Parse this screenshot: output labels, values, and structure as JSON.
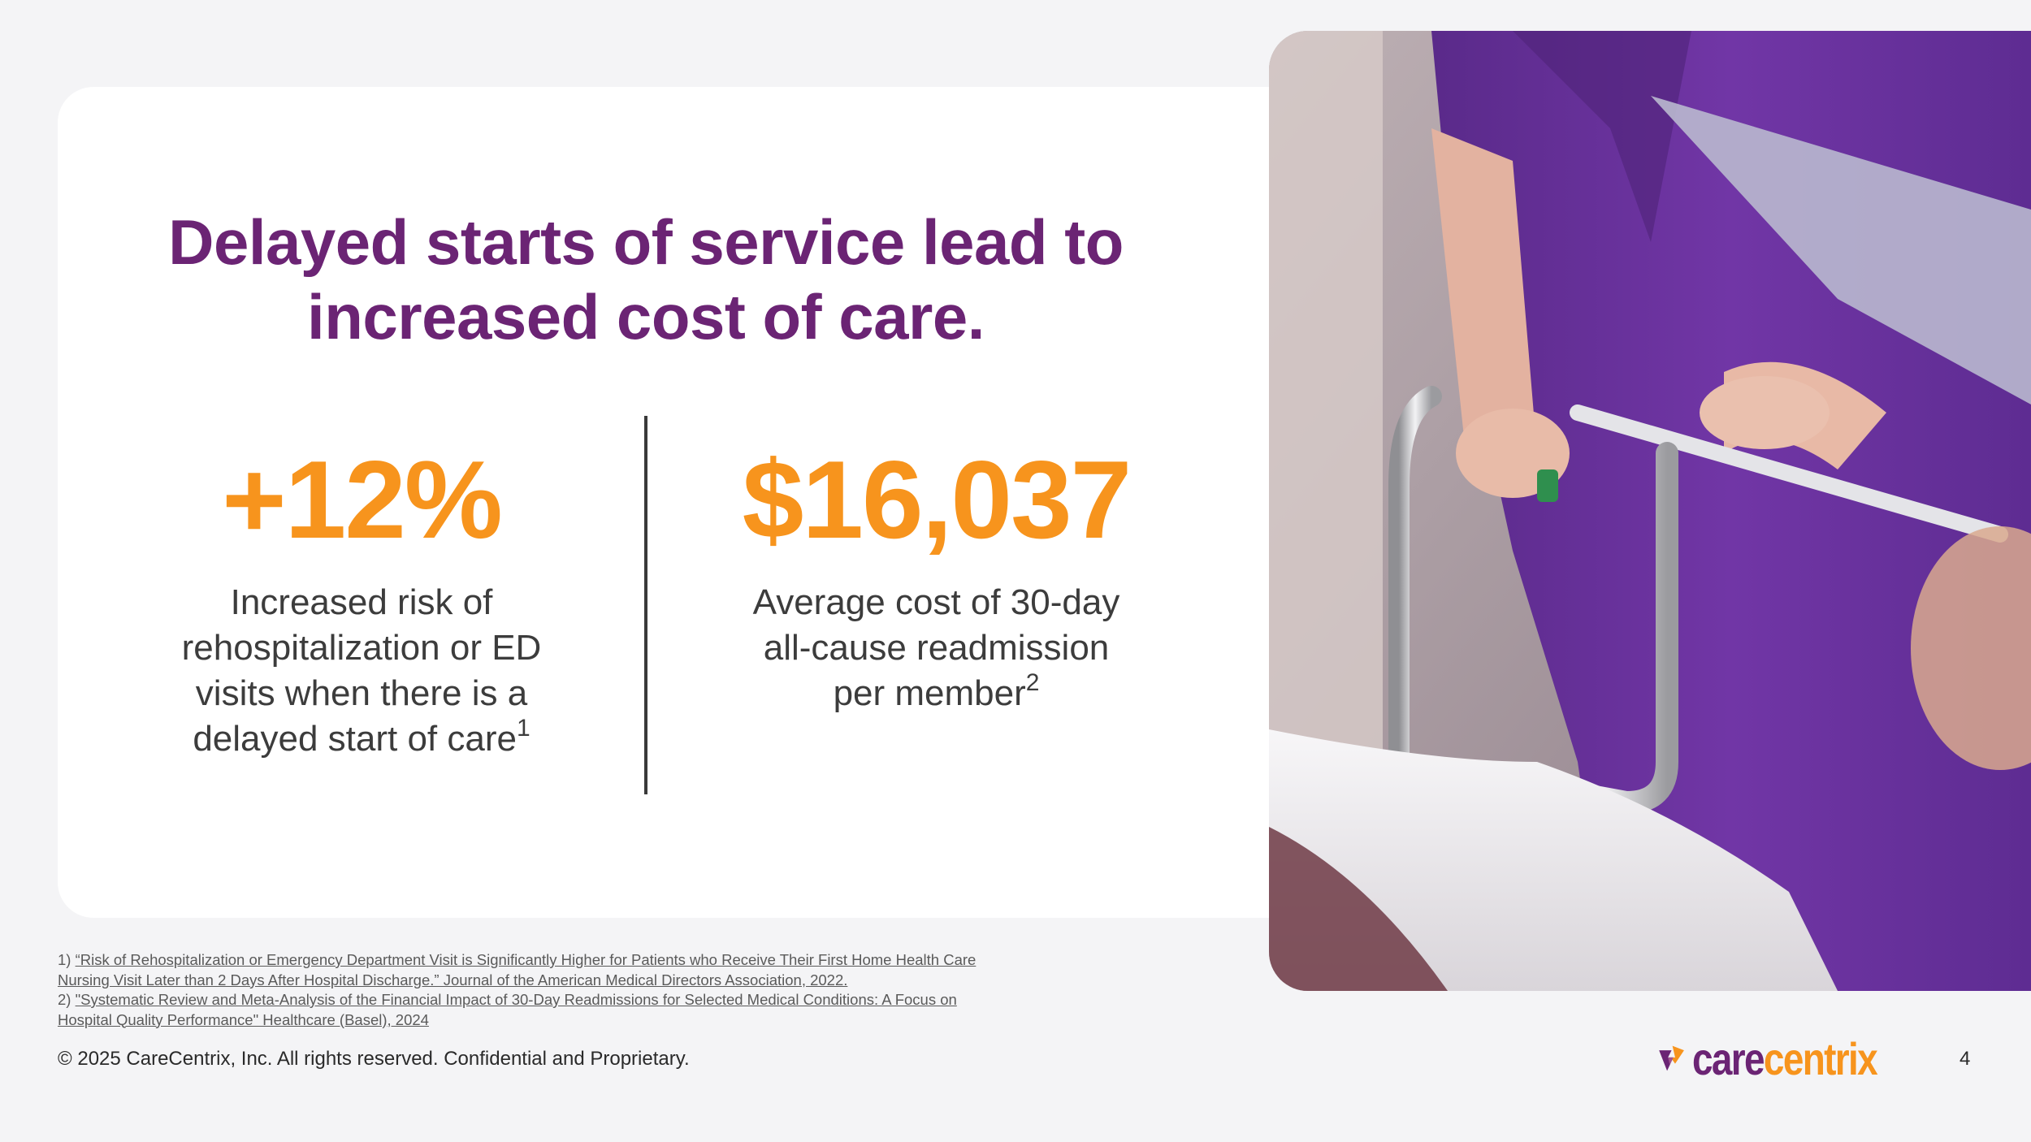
{
  "slide": {
    "title_line1": "Delayed starts of service lead to",
    "title_line2": "increased cost of care.",
    "stats": [
      {
        "value": "+12%",
        "description_lines": [
          "Increased risk of",
          "rehospitalization or ED",
          "visits when there is a",
          "delayed start of care"
        ],
        "footnote_marker": "1"
      },
      {
        "value": "$16,037",
        "description_lines": [
          "Average cost of 30-day",
          "all-cause readmission",
          "per member"
        ],
        "footnote_marker": "2"
      }
    ],
    "footnotes": [
      {
        "number": "1)",
        "line1": "“Risk of Rehospitalization or Emergency Department Visit is Significantly Higher for Patients who Receive Their First Home Health Care",
        "line2": "Nursing Visit Later than 2 Days After Hospital Discharge.” Journal of the American Medical Directors Association, 2022."
      },
      {
        "number": "2)",
        "line1": "\"Systematic Review and Meta-Analysis of the Financial Impact of 30-Day Readmissions for Selected Medical Conditions: A Focus on",
        "line2": "Hospital Quality Performance\" Healthcare (Basel),  2024"
      }
    ],
    "copyright": "© 2025 CareCentrix, Inc. All rights reserved. Confidential and Proprietary.",
    "logo": {
      "part1": "care",
      "part2": "centrix"
    },
    "page_number": "4"
  },
  "colors": {
    "brand_purple": "#6b2474",
    "brand_orange": "#f7941d",
    "background": "#f4f4f6"
  },
  "icons": {
    "logo_mark": "carecentrix-heart-logo-icon",
    "photo": "nurse-with-hospital-bed-photo"
  }
}
